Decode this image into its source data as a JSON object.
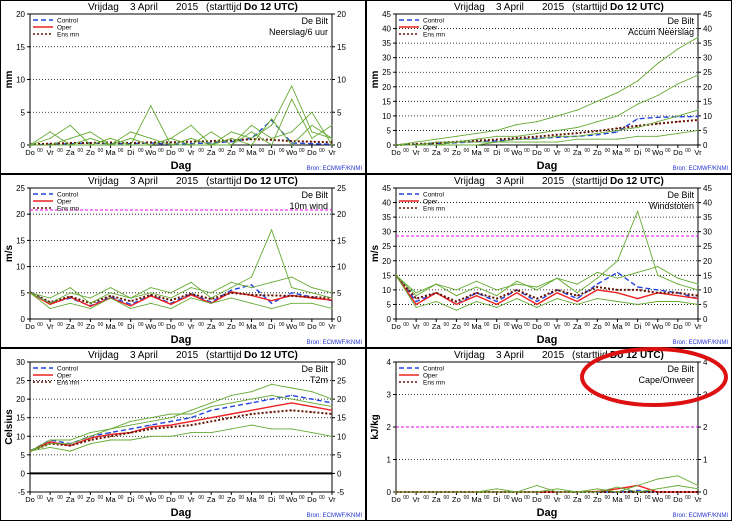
{
  "panel_header": {
    "day": "Vrijdag",
    "date": "3 April",
    "year": "2015",
    "start": "(starttijd",
    "start_time": "Do 12 UTC)"
  },
  "x_axis_label": "Dag",
  "day_labels": [
    "Do",
    "Vr",
    "Za",
    "Zo",
    "Ma",
    "Di",
    "Wo",
    "Do",
    "Vr",
    "Za",
    "Zo",
    "Ma",
    "Di",
    "Wo",
    "Do",
    "Vr"
  ],
  "sub_tick_label": "00",
  "station": "De Bilt",
  "source_label": "Bron: ECMWF/KNMI",
  "legend_labels": {
    "control": "Control",
    "oper": "Oper",
    "ensmean": "Ens mn"
  },
  "colors": {
    "control": "#2244dd",
    "oper": "#ee2222",
    "ensmean": "#661100",
    "members": "#66aa33",
    "reference": "#ee00ee",
    "highlight": "#dd1111"
  },
  "highlight": {
    "panel": 5,
    "shape": "ellipse"
  },
  "chart_data": [
    {
      "type": "line",
      "title": "Neerslag/6 uur",
      "ylabel": "mm",
      "xlabel": "Dag",
      "ylim": [
        0,
        20
      ],
      "yticks": [
        0,
        5,
        10,
        15,
        20
      ],
      "gridlines": [
        5,
        10,
        15
      ],
      "x": [
        "Do",
        "Vr",
        "Za",
        "Zo",
        "Ma",
        "Di",
        "Wo",
        "Do",
        "Vr",
        "Za",
        "Zo",
        "Ma",
        "Di",
        "Wo",
        "Do",
        "Vr"
      ],
      "series": [
        {
          "name": "Control",
          "values": [
            0,
            0.1,
            0.2,
            0.3,
            0.2,
            0.2,
            0.3,
            0.1,
            0.2,
            0.3,
            0.5,
            1.0,
            3.8,
            0.3,
            0.2,
            0.1
          ]
        },
        {
          "name": "Ens mn",
          "values": [
            0.1,
            0.2,
            0.3,
            0.3,
            0.4,
            0.3,
            0.4,
            0.4,
            0.5,
            0.6,
            0.7,
            0.9,
            0.8,
            0.6,
            0.5,
            0.4
          ]
        },
        {
          "name": "",
          "values": [
            0,
            1,
            3,
            0,
            0,
            1,
            0,
            1,
            0,
            0,
            2,
            1,
            3,
            9,
            2,
            1
          ]
        },
        {
          "name": "",
          "values": [
            0,
            0,
            1,
            2,
            0,
            0,
            6,
            0,
            1,
            0,
            0,
            3,
            1,
            2,
            5,
            0
          ]
        },
        {
          "name": "",
          "values": [
            0,
            2,
            0,
            0,
            1,
            0,
            0,
            1,
            3,
            0,
            1,
            0,
            4,
            0,
            3,
            1
          ]
        },
        {
          "name": "",
          "values": [
            0,
            0,
            0,
            1,
            0,
            2,
            1,
            0,
            0,
            2,
            0,
            2,
            0,
            7,
            1,
            3
          ]
        }
      ]
    },
    {
      "type": "line",
      "title": "Accum Neerslag",
      "ylabel": "mm",
      "xlabel": "Dag",
      "ylim": [
        0,
        45
      ],
      "yticks": [
        0,
        5,
        10,
        15,
        20,
        25,
        30,
        35,
        40,
        45
      ],
      "gridlines": [
        5,
        10,
        15,
        20,
        25,
        30,
        35,
        40
      ],
      "x": [
        "Do",
        "Vr",
        "Za",
        "Zo",
        "Ma",
        "Di",
        "Wo",
        "Do",
        "Vr",
        "Za",
        "Zo",
        "Ma",
        "Di",
        "Wo",
        "Do",
        "Vr"
      ],
      "series": [
        {
          "name": "Control",
          "values": [
            0,
            0.2,
            0.5,
            0.8,
            1.1,
            1.4,
            2,
            2.3,
            2.6,
            3,
            3.5,
            4.5,
            9,
            9.5,
            9.7,
            9.8
          ]
        },
        {
          "name": "Ens mn",
          "values": [
            0,
            0.3,
            0.7,
            1.1,
            1.5,
            1.9,
            2.4,
            2.9,
            3.5,
            4.1,
            4.8,
            5.7,
            6.6,
            7.3,
            8,
            8.6
          ]
        },
        {
          "name": "",
          "values": [
            0,
            1,
            2,
            3,
            4,
            5,
            7,
            8,
            10,
            12,
            15,
            18,
            22,
            28,
            33,
            37
          ]
        },
        {
          "name": "",
          "values": [
            0,
            0,
            1,
            1,
            2,
            3,
            3,
            4,
            5,
            6,
            8,
            10,
            14,
            17,
            21,
            24
          ]
        },
        {
          "name": "",
          "values": [
            0,
            0,
            0,
            1,
            1,
            1,
            2,
            2,
            3,
            3,
            4,
            5,
            6,
            8,
            10,
            12
          ]
        },
        {
          "name": "",
          "values": [
            0,
            0,
            0,
            0,
            0,
            1,
            1,
            1,
            1,
            2,
            2,
            2,
            3,
            3,
            4,
            5
          ]
        }
      ]
    },
    {
      "type": "line",
      "title": "10m wind",
      "ylabel": "m/s",
      "xlabel": "Dag",
      "ylim": [
        0,
        25
      ],
      "yticks": [
        0,
        5,
        10,
        15,
        20,
        25
      ],
      "gridlines": [
        5,
        10,
        15,
        20
      ],
      "reference_line": 20.8,
      "x": [
        "Do",
        "Vr",
        "Za",
        "Zo",
        "Ma",
        "Di",
        "Wo",
        "Do",
        "Vr",
        "Za",
        "Zo",
        "Ma",
        "Di",
        "Wo",
        "Do",
        "Vr"
      ],
      "series": [
        {
          "name": "Control",
          "values": [
            5.2,
            3,
            4,
            2.5,
            4.2,
            2.8,
            4.5,
            3,
            4.8,
            3.2,
            5.5,
            6.5,
            3,
            5,
            4.2,
            3.5
          ]
        },
        {
          "name": "Oper",
          "values": [
            5,
            2.8,
            4.2,
            2.4,
            4,
            2.5,
            4.4,
            2.8,
            4.6,
            3,
            5.2,
            4.5,
            3.5,
            4.5,
            4,
            3.6
          ]
        },
        {
          "name": "Ens mn",
          "values": [
            5.1,
            3.2,
            4.3,
            3,
            4.4,
            3.4,
            4.6,
            3.6,
            4.8,
            3.8,
            5,
            4.6,
            4.5,
            4.4,
            4.2,
            4
          ]
        },
        {
          "name": "",
          "values": [
            5,
            4,
            6,
            3,
            5,
            4,
            6,
            5,
            7,
            4,
            6,
            8,
            17,
            6,
            5,
            4
          ]
        },
        {
          "name": "",
          "values": [
            5,
            2,
            3,
            2,
            4,
            2,
            3,
            2,
            4,
            3,
            4,
            3,
            2,
            3,
            3,
            2
          ]
        },
        {
          "name": "",
          "values": [
            5,
            3,
            5,
            4,
            6,
            4,
            5,
            4,
            6,
            5,
            7,
            6,
            7,
            8,
            6,
            5
          ]
        }
      ]
    },
    {
      "type": "line",
      "title": "Windstoten",
      "ylabel": "m/s",
      "xlabel": "Dag",
      "ylim": [
        0,
        45
      ],
      "yticks": [
        0,
        5,
        10,
        15,
        20,
        25,
        30,
        35,
        40,
        45
      ],
      "gridlines": [
        5,
        10,
        15,
        20,
        25,
        30,
        35,
        40
      ],
      "reference_line": 28.5,
      "x": [
        "Do",
        "Vr",
        "Za",
        "Zo",
        "Ma",
        "Di",
        "Wo",
        "Do",
        "Vr",
        "Za",
        "Zo",
        "Ma",
        "Di",
        "Wo",
        "Do",
        "Vr"
      ],
      "series": [
        {
          "name": "Control",
          "values": [
            15,
            6,
            9,
            5,
            9,
            6,
            10,
            6,
            10,
            7,
            12,
            16,
            11,
            10,
            9,
            7
          ]
        },
        {
          "name": "Oper",
          "values": [
            15,
            5,
            9,
            5,
            8,
            5,
            9,
            5,
            9,
            6,
            10,
            9,
            7,
            9,
            8,
            7
          ]
        },
        {
          "name": "Ens mn",
          "values": [
            15,
            7,
            9,
            6,
            9,
            7,
            10,
            7,
            10,
            8,
            11,
            10,
            10,
            9,
            9,
            8
          ]
        },
        {
          "name": "",
          "values": [
            15,
            8,
            12,
            8,
            11,
            8,
            13,
            10,
            14,
            9,
            14,
            20,
            37,
            15,
            12,
            10
          ]
        },
        {
          "name": "",
          "values": [
            15,
            4,
            6,
            3,
            6,
            4,
            7,
            4,
            7,
            5,
            7,
            6,
            5,
            6,
            6,
            5
          ]
        },
        {
          "name": "",
          "values": [
            15,
            9,
            12,
            10,
            13,
            10,
            12,
            11,
            14,
            12,
            16,
            14,
            16,
            18,
            14,
            12
          ]
        }
      ]
    },
    {
      "type": "line",
      "title": "T2m",
      "ylabel": "Celsius",
      "xlabel": "Dag",
      "ylim": [
        -5,
        30
      ],
      "yticks": [
        -5,
        0,
        5,
        10,
        15,
        20,
        25,
        30
      ],
      "gridlines": [
        5,
        10,
        15,
        20,
        25
      ],
      "x": [
        "Do",
        "Vr",
        "Za",
        "Zo",
        "Ma",
        "Di",
        "Wo",
        "Do",
        "Vr",
        "Za",
        "Zo",
        "Ma",
        "Di",
        "Wo",
        "Do",
        "Vr"
      ],
      "series": [
        {
          "name": "Control",
          "values": [
            6,
            9,
            8,
            10,
            11,
            12,
            13,
            14,
            15,
            17,
            18,
            19,
            20,
            21,
            20,
            19
          ]
        },
        {
          "name": "Oper",
          "values": [
            6,
            8.5,
            7.5,
            9.5,
            10.5,
            11,
            12.5,
            13,
            14,
            15,
            16,
            17,
            18,
            19,
            18,
            17
          ]
        },
        {
          "name": "Ens mn",
          "values": [
            6,
            8,
            7.5,
            9,
            10,
            11,
            12,
            12.5,
            13,
            14,
            15,
            16,
            16.5,
            17,
            16.5,
            16
          ]
        },
        {
          "name": "",
          "values": [
            6,
            8,
            8,
            10,
            12,
            13,
            14,
            15,
            17,
            19,
            21,
            22,
            24,
            23,
            22,
            20
          ]
        },
        {
          "name": "",
          "values": [
            6,
            7,
            6,
            8,
            9,
            9,
            10,
            10,
            11,
            11,
            12,
            13,
            12,
            12,
            11,
            10
          ]
        },
        {
          "name": "",
          "values": [
            6,
            9,
            9,
            11,
            12,
            14,
            15,
            16,
            16,
            18,
            19,
            20,
            21,
            20,
            19,
            18
          ]
        }
      ]
    },
    {
      "type": "line",
      "title": "Cape/Onweer",
      "ylabel": "kJ/kg",
      "xlabel": "Dag",
      "ylim": [
        0,
        4
      ],
      "yticks": [
        0,
        1,
        2,
        3,
        4
      ],
      "gridlines": [
        1,
        3
      ],
      "reference_line": 2,
      "x": [
        "Do",
        "Vr",
        "Za",
        "Zo",
        "Ma",
        "Di",
        "Wo",
        "Do",
        "Vr",
        "Za",
        "Zo",
        "Ma",
        "Di",
        "Wo",
        "Do",
        "Vr"
      ],
      "series": [
        {
          "name": "Control",
          "values": [
            0,
            0,
            0,
            0,
            0,
            0,
            0,
            0,
            0,
            0,
            0,
            0,
            0.05,
            0,
            0,
            0
          ]
        },
        {
          "name": "Oper",
          "values": [
            0,
            0,
            0,
            0,
            0,
            0,
            0,
            0,
            0,
            0,
            0.02,
            0.1,
            0.2,
            0,
            0,
            0
          ]
        },
        {
          "name": "Ens mn",
          "values": [
            0,
            0,
            0,
            0,
            0,
            0,
            0,
            0,
            0,
            0,
            0,
            0,
            0,
            0,
            0,
            0
          ]
        },
        {
          "name": "",
          "values": [
            0,
            0,
            0,
            0,
            0,
            0.1,
            0,
            0.2,
            0,
            0,
            0.1,
            0,
            0.2,
            0.4,
            0.5,
            0.2
          ]
        },
        {
          "name": "",
          "values": [
            0,
            0,
            0,
            0,
            0,
            0,
            0,
            0,
            0.1,
            0,
            0,
            0.15,
            0,
            0.1,
            0.2,
            0.1
          ]
        }
      ]
    }
  ]
}
